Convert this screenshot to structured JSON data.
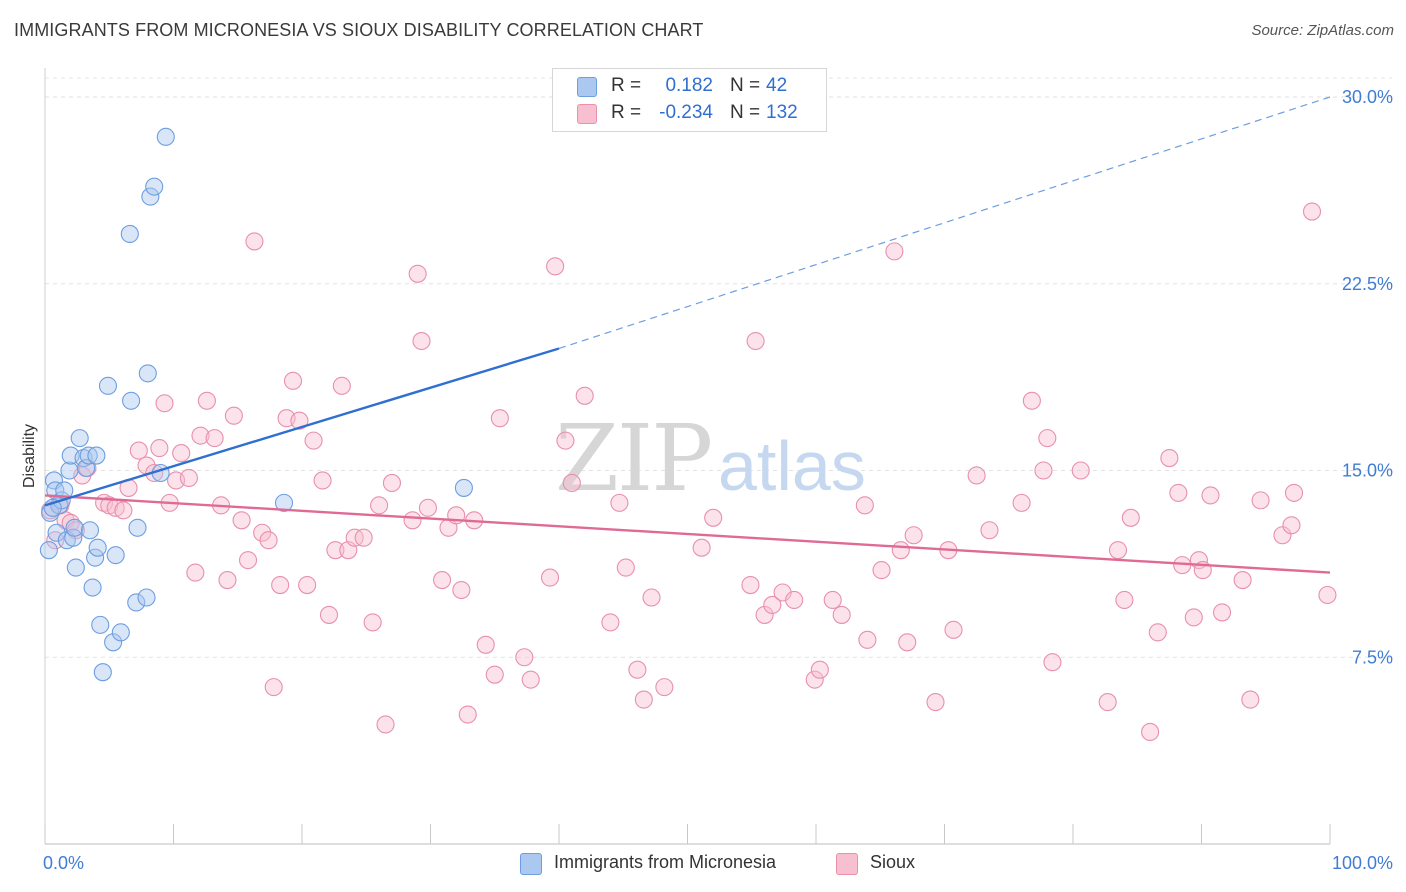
{
  "title": "IMMIGRANTS FROM MICRONESIA VS SIOUX DISABILITY CORRELATION CHART",
  "source": "Source: ZipAtlas.com",
  "watermark": {
    "zip": "ZIP",
    "atlas": "atlas"
  },
  "legend_top": {
    "rows": [
      {
        "r_label": "R =",
        "r_value": "0.182",
        "n_label": "N =",
        "n_value": "42",
        "color": "#aac8f0",
        "stroke": "#6d9ee0"
      },
      {
        "r_label": "R =",
        "r_value": "-0.234",
        "n_label": "N =",
        "n_value": "132",
        "color": "#f8bfd0",
        "stroke": "#e890ac"
      }
    ]
  },
  "chart_data": {
    "type": "scatter",
    "title": "IMMIGRANTS FROM MICRONESIA VS SIOUX DISABILITY CORRELATION CHART",
    "xlabel": "",
    "ylabel": "Disability",
    "xlim": [
      0,
      100
    ],
    "ylim": [
      0,
      31.5
    ],
    "x_tick_labels": [
      "0.0%",
      "100.0%"
    ],
    "y_ticks": [
      7.5,
      15.0,
      22.5,
      30.0
    ],
    "y_tick_labels": [
      "7.5%",
      "15.0%",
      "22.5%",
      "30.0%"
    ],
    "grid": true,
    "legend_position": "bottom-center",
    "series": [
      {
        "name": "Immigrants from Micronesia",
        "color": "#6d9ee0",
        "fill": "#aac8f0",
        "trend": {
          "x": [
            0,
            40
          ],
          "y": [
            13.6,
            19.9
          ],
          "extended_to": [
            100,
            30.0
          ]
        },
        "points": [
          [
            0.3,
            11.8
          ],
          [
            0.4,
            13.3
          ],
          [
            0.7,
            14.6
          ],
          [
            0.8,
            14.2
          ],
          [
            0.9,
            12.5
          ],
          [
            1.1,
            13.6
          ],
          [
            1.3,
            13.8
          ],
          [
            1.5,
            14.2
          ],
          [
            1.7,
            12.2
          ],
          [
            1.9,
            15.0
          ],
          [
            2.0,
            15.6
          ],
          [
            2.2,
            12.3
          ],
          [
            2.3,
            12.7
          ],
          [
            2.4,
            11.1
          ],
          [
            2.7,
            16.3
          ],
          [
            3.0,
            15.5
          ],
          [
            3.2,
            15.1
          ],
          [
            3.4,
            15.6
          ],
          [
            3.5,
            12.6
          ],
          [
            3.7,
            10.3
          ],
          [
            3.9,
            11.5
          ],
          [
            4.0,
            15.6
          ],
          [
            4.1,
            11.9
          ],
          [
            4.3,
            8.8
          ],
          [
            4.5,
            6.9
          ],
          [
            4.9,
            18.4
          ],
          [
            5.3,
            8.1
          ],
          [
            5.5,
            11.6
          ],
          [
            5.9,
            8.5
          ],
          [
            6.6,
            24.5
          ],
          [
            6.7,
            17.8
          ],
          [
            7.1,
            9.7
          ],
          [
            7.2,
            12.7
          ],
          [
            7.9,
            9.9
          ],
          [
            8.0,
            18.9
          ],
          [
            8.2,
            26.0
          ],
          [
            8.5,
            26.4
          ],
          [
            9.0,
            14.9
          ],
          [
            9.4,
            28.4
          ],
          [
            18.6,
            13.7
          ],
          [
            32.6,
            14.3
          ],
          [
            0.6,
            13.5
          ]
        ]
      },
      {
        "name": "Sioux",
        "color": "#e890ac",
        "fill": "#f8bfd0",
        "trend": {
          "x": [
            0,
            100
          ],
          "y": [
            14.0,
            10.9
          ]
        },
        "points": [
          [
            0.4,
            13.4
          ],
          [
            0.8,
            12.2
          ],
          [
            1.2,
            13.6
          ],
          [
            1.6,
            13.0
          ],
          [
            2.0,
            12.9
          ],
          [
            2.4,
            12.6
          ],
          [
            2.9,
            14.8
          ],
          [
            3.3,
            15.1
          ],
          [
            4.6,
            13.7
          ],
          [
            5.0,
            13.6
          ],
          [
            5.5,
            13.5
          ],
          [
            6.1,
            13.4
          ],
          [
            6.5,
            14.3
          ],
          [
            7.3,
            15.8
          ],
          [
            7.9,
            15.2
          ],
          [
            8.5,
            14.9
          ],
          [
            8.9,
            15.9
          ],
          [
            9.3,
            17.7
          ],
          [
            9.7,
            13.7
          ],
          [
            10.2,
            14.6
          ],
          [
            10.6,
            15.7
          ],
          [
            11.2,
            14.7
          ],
          [
            11.7,
            10.9
          ],
          [
            12.1,
            16.4
          ],
          [
            12.6,
            17.8
          ],
          [
            13.2,
            16.3
          ],
          [
            13.7,
            13.6
          ],
          [
            14.2,
            10.6
          ],
          [
            14.7,
            17.2
          ],
          [
            15.3,
            13.0
          ],
          [
            15.8,
            11.4
          ],
          [
            16.3,
            24.2
          ],
          [
            16.9,
            12.5
          ],
          [
            17.4,
            12.2
          ],
          [
            17.8,
            6.3
          ],
          [
            18.3,
            10.4
          ],
          [
            18.8,
            17.1
          ],
          [
            19.3,
            18.6
          ],
          [
            19.8,
            17.0
          ],
          [
            20.4,
            10.4
          ],
          [
            20.9,
            16.2
          ],
          [
            21.6,
            14.6
          ],
          [
            22.1,
            9.2
          ],
          [
            22.6,
            11.8
          ],
          [
            23.1,
            18.4
          ],
          [
            23.6,
            11.8
          ],
          [
            24.1,
            12.3
          ],
          [
            24.8,
            12.3
          ],
          [
            25.5,
            8.9
          ],
          [
            26.0,
            13.6
          ],
          [
            26.5,
            4.8
          ],
          [
            27.0,
            14.5
          ],
          [
            28.6,
            13.0
          ],
          [
            29.0,
            22.9
          ],
          [
            29.3,
            20.2
          ],
          [
            29.8,
            13.5
          ],
          [
            30.9,
            10.6
          ],
          [
            31.4,
            12.7
          ],
          [
            32.0,
            13.2
          ],
          [
            32.4,
            10.2
          ],
          [
            32.9,
            5.2
          ],
          [
            33.4,
            13.0
          ],
          [
            34.3,
            8.0
          ],
          [
            35.0,
            6.8
          ],
          [
            35.4,
            17.1
          ],
          [
            37.3,
            7.5
          ],
          [
            37.8,
            6.6
          ],
          [
            39.3,
            10.7
          ],
          [
            39.7,
            23.2
          ],
          [
            40.5,
            16.2
          ],
          [
            41.0,
            14.5
          ],
          [
            42.0,
            18.0
          ],
          [
            44.0,
            8.9
          ],
          [
            44.7,
            13.7
          ],
          [
            45.2,
            11.1
          ],
          [
            46.1,
            7.0
          ],
          [
            46.6,
            5.8
          ],
          [
            47.2,
            9.9
          ],
          [
            48.2,
            6.3
          ],
          [
            51.1,
            11.9
          ],
          [
            52.0,
            13.1
          ],
          [
            54.9,
            10.4
          ],
          [
            55.3,
            20.2
          ],
          [
            56.0,
            9.2
          ],
          [
            56.6,
            9.6
          ],
          [
            57.4,
            10.1
          ],
          [
            58.3,
            9.8
          ],
          [
            59.9,
            6.6
          ],
          [
            60.3,
            7.0
          ],
          [
            61.3,
            9.8
          ],
          [
            62.0,
            9.2
          ],
          [
            63.8,
            13.6
          ],
          [
            64.0,
            8.2
          ],
          [
            65.1,
            11.0
          ],
          [
            66.1,
            23.8
          ],
          [
            66.6,
            11.8
          ],
          [
            67.1,
            8.1
          ],
          [
            67.6,
            12.4
          ],
          [
            69.3,
            5.7
          ],
          [
            70.3,
            11.8
          ],
          [
            70.7,
            8.6
          ],
          [
            72.5,
            14.8
          ],
          [
            73.5,
            12.6
          ],
          [
            76.0,
            13.7
          ],
          [
            76.8,
            17.8
          ],
          [
            77.7,
            15.0
          ],
          [
            78.0,
            16.3
          ],
          [
            78.4,
            7.3
          ],
          [
            80.6,
            15.0
          ],
          [
            82.7,
            5.7
          ],
          [
            83.5,
            11.8
          ],
          [
            84.0,
            9.8
          ],
          [
            84.5,
            13.1
          ],
          [
            86.0,
            4.5
          ],
          [
            86.6,
            8.5
          ],
          [
            87.5,
            15.5
          ],
          [
            88.2,
            14.1
          ],
          [
            88.5,
            11.2
          ],
          [
            89.4,
            9.1
          ],
          [
            89.8,
            11.4
          ],
          [
            90.1,
            11.0
          ],
          [
            90.7,
            14.0
          ],
          [
            91.6,
            9.3
          ],
          [
            93.2,
            10.6
          ],
          [
            93.8,
            5.8
          ],
          [
            94.6,
            13.8
          ],
          [
            96.3,
            12.4
          ],
          [
            97.2,
            14.1
          ],
          [
            97.0,
            12.8
          ],
          [
            98.6,
            25.4
          ],
          [
            99.8,
            10.0
          ]
        ]
      }
    ]
  },
  "legend_bottom": [
    {
      "label": "Immigrants from Micronesia",
      "color": "#aac8f0",
      "stroke": "#6d9ee0"
    },
    {
      "label": "Sioux",
      "color": "#f8bfd0",
      "stroke": "#e890ac"
    }
  ]
}
